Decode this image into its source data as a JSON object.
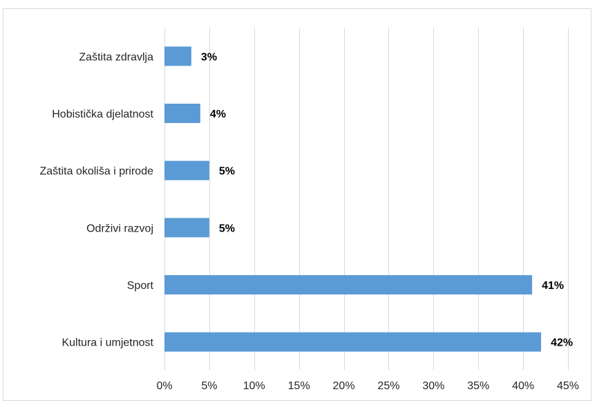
{
  "chart_data": {
    "type": "bar",
    "orientation": "horizontal",
    "categories": [
      "Zaštita zdravlja",
      "Hobistička djelatnost",
      "Zaštita okoliša i prirode",
      "Održivi razvoj",
      "Sport",
      "Kultura i umjetnost"
    ],
    "values": [
      3,
      4,
      5,
      5,
      41,
      42
    ],
    "data_labels": [
      "3%",
      "4%",
      "5%",
      "5%",
      "41%",
      "42%"
    ],
    "xlim": [
      0,
      45
    ],
    "x_ticks": [
      0,
      5,
      10,
      15,
      20,
      25,
      30,
      35,
      40,
      45
    ],
    "x_tick_labels": [
      "0%",
      "5%",
      "10%",
      "15%",
      "20%",
      "25%",
      "30%",
      "35%",
      "40%",
      "45%"
    ],
    "grid": "vertical",
    "bar_color": "#5b9bd5",
    "title": "",
    "xlabel": "",
    "ylabel": ""
  }
}
